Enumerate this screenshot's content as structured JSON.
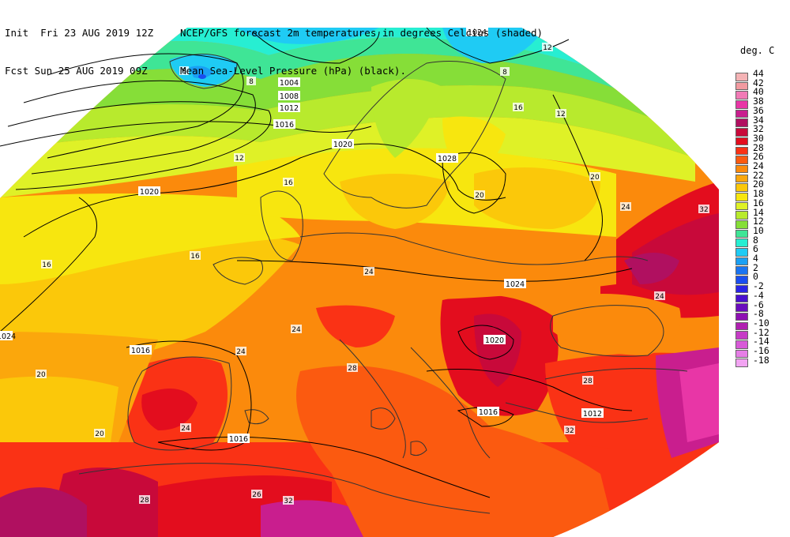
{
  "header": {
    "init": "Init  Fri 23 AUG 2019 12Z",
    "fcst": "Fcst Sun 25 AUG 2019 09Z",
    "title1": "NCEP/GFS forecast 2m temperatures in degrees Celcius (shaded)",
    "title2": "Mean Sea-Level Pressure (hPa) (black)."
  },
  "legend": {
    "title": "deg. C",
    "items": [
      {
        "label": "44",
        "color": "#f4b3b5"
      },
      {
        "label": "42",
        "color": "#f29aa0"
      },
      {
        "label": "40",
        "color": "#f17ab6"
      },
      {
        "label": "38",
        "color": "#e836a6"
      },
      {
        "label": "36",
        "color": "#c91e8e"
      },
      {
        "label": "34",
        "color": "#b01060"
      },
      {
        "label": "32",
        "color": "#c8093a"
      },
      {
        "label": "30",
        "color": "#e30d1e"
      },
      {
        "label": "28",
        "color": "#fa3215"
      },
      {
        "label": "26",
        "color": "#fb5a10"
      },
      {
        "label": "24",
        "color": "#fb8a0c"
      },
      {
        "label": "22",
        "color": "#fba70c"
      },
      {
        "label": "20",
        "color": "#fbc80a"
      },
      {
        "label": "18",
        "color": "#f7e60f"
      },
      {
        "label": "16",
        "color": "#dff127"
      },
      {
        "label": "14",
        "color": "#b8ea2d"
      },
      {
        "label": "12",
        "color": "#86de38"
      },
      {
        "label": "10",
        "color": "#3fe596"
      },
      {
        "label": "8",
        "color": "#27eed2"
      },
      {
        "label": "6",
        "color": "#1fcbf4"
      },
      {
        "label": "4",
        "color": "#1aa0f4"
      },
      {
        "label": "2",
        "color": "#1a74f2"
      },
      {
        "label": "0",
        "color": "#1a4ef0"
      },
      {
        "label": "-2",
        "color": "#2a24e6"
      },
      {
        "label": "-4",
        "color": "#4a10cf"
      },
      {
        "label": "-6",
        "color": "#6a0cbd"
      },
      {
        "label": "-8",
        "color": "#8e10b2"
      },
      {
        "label": "-10",
        "color": "#b020b0"
      },
      {
        "label": "-12",
        "color": "#c63cc6"
      },
      {
        "label": "-14",
        "color": "#d85ad8"
      },
      {
        "label": "-16",
        "color": "#e67ee6"
      },
      {
        "label": "-18",
        "color": "#f2a4f2"
      }
    ]
  },
  "isobars": {
    "labels": [
      "1024",
      "1004",
      "1008",
      "1012",
      "1016",
      "1020",
      "1028",
      "1020",
      "1024",
      "1020",
      "1016",
      "1016",
      "1012",
      "1016",
      "1024"
    ]
  },
  "temp_labels": [
    "8",
    "8",
    "8",
    "12",
    "12",
    "16",
    "16",
    "16",
    "20",
    "20",
    "20",
    "24",
    "24",
    "24",
    "24",
    "28",
    "28",
    "28",
    "32",
    "32",
    "32",
    "12",
    "16",
    "20",
    "24",
    "24",
    "26"
  ]
}
